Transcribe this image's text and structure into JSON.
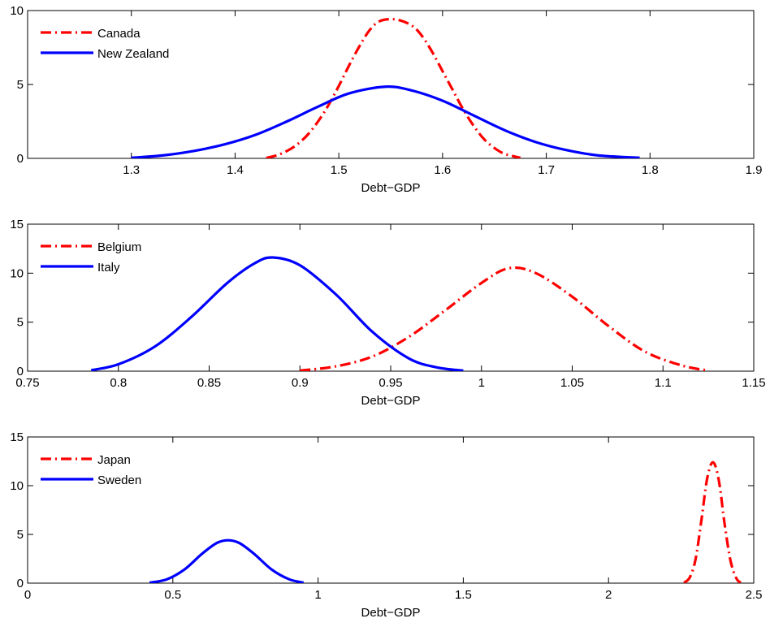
{
  "chart_data": [
    {
      "type": "line",
      "xlabel": "Debt−GDP",
      "ylabel": "",
      "xlim": [
        1.2,
        1.9
      ],
      "ylim": [
        0,
        10
      ],
      "xticks": [
        "1.3",
        "1.4",
        "1.5",
        "1.6",
        "1.7",
        "1.8",
        "1.9"
      ],
      "yticks": [
        "0",
        "5",
        "10"
      ],
      "legend_position": "top-left",
      "grid": false,
      "series": [
        {
          "name": "Canada",
          "style": "dash-dot",
          "color": "#ff0000",
          "x": [
            1.43,
            1.44,
            1.45,
            1.46,
            1.47,
            1.48,
            1.49,
            1.5,
            1.51,
            1.52,
            1.53,
            1.54,
            1.555,
            1.57,
            1.58,
            1.59,
            1.6,
            1.61,
            1.62,
            1.63,
            1.64,
            1.65,
            1.66,
            1.675
          ],
          "y": [
            0.03,
            0.2,
            0.5,
            0.95,
            1.6,
            2.5,
            3.6,
            4.9,
            6.3,
            7.6,
            8.7,
            9.3,
            9.4,
            9.0,
            8.3,
            7.2,
            5.9,
            4.6,
            3.3,
            2.2,
            1.3,
            0.7,
            0.3,
            0.04
          ]
        },
        {
          "name": "New Zealand",
          "style": "solid",
          "color": "#0000ff",
          "x": [
            1.3,
            1.33,
            1.36,
            1.39,
            1.42,
            1.45,
            1.48,
            1.51,
            1.545,
            1.57,
            1.6,
            1.63,
            1.66,
            1.69,
            1.72,
            1.75,
            1.79
          ],
          "y": [
            0.04,
            0.2,
            0.5,
            0.95,
            1.6,
            2.5,
            3.5,
            4.4,
            4.85,
            4.6,
            3.9,
            2.9,
            1.9,
            1.1,
            0.55,
            0.2,
            0.04
          ]
        }
      ]
    },
    {
      "type": "line",
      "xlabel": "Debt−GDP",
      "ylabel": "",
      "xlim": [
        0.75,
        1.15
      ],
      "ylim": [
        0,
        15
      ],
      "xticks": [
        "0.75",
        "0.8",
        "0.85",
        "0.9",
        "0.95",
        "1",
        "1.05",
        "1.1",
        "1.15"
      ],
      "yticks": [
        "0",
        "5",
        "10",
        "15"
      ],
      "legend_position": "top-left",
      "grid": false,
      "series": [
        {
          "name": "Belgium",
          "style": "dash-dot",
          "color": "#ff0000",
          "x": [
            0.9,
            0.92,
            0.94,
            0.96,
            0.98,
            1.0,
            1.015,
            1.03,
            1.05,
            1.07,
            1.09,
            1.11,
            1.125
          ],
          "y": [
            0.05,
            0.5,
            1.5,
            3.5,
            6.2,
            9.0,
            10.5,
            10.0,
            7.6,
            4.6,
            2.0,
            0.6,
            0.05
          ]
        },
        {
          "name": "Italy",
          "style": "solid",
          "color": "#0000ff",
          "x": [
            0.785,
            0.8,
            0.82,
            0.84,
            0.86,
            0.875,
            0.885,
            0.9,
            0.92,
            0.94,
            0.96,
            0.975,
            0.99
          ],
          "y": [
            0.1,
            0.7,
            2.5,
            5.5,
            9.0,
            11.0,
            11.6,
            10.8,
            7.8,
            4.0,
            1.3,
            0.4,
            0.05
          ]
        }
      ]
    },
    {
      "type": "line",
      "xlabel": "Debt−GDP",
      "ylabel": "",
      "xlim": [
        0,
        2.5
      ],
      "ylim": [
        0,
        15
      ],
      "xticks": [
        "0",
        "0.5",
        "1",
        "1.5",
        "2",
        "2.5"
      ],
      "yticks": [
        "0",
        "5",
        "10",
        "15"
      ],
      "legend_position": "top-left",
      "grid": false,
      "series": [
        {
          "name": "Japan",
          "style": "dash-dot",
          "color": "#ff0000",
          "x": [
            2.26,
            2.28,
            2.3,
            2.32,
            2.34,
            2.36,
            2.38,
            2.4,
            2.42,
            2.44,
            2.455
          ],
          "y": [
            0.05,
            0.6,
            2.5,
            6.5,
            10.8,
            12.4,
            10.5,
            6.0,
            2.3,
            0.5,
            0.05
          ]
        },
        {
          "name": "Sweden",
          "style": "solid",
          "color": "#0000ff",
          "x": [
            0.42,
            0.48,
            0.54,
            0.6,
            0.65,
            0.69,
            0.73,
            0.78,
            0.84,
            0.9,
            0.95
          ],
          "y": [
            0.05,
            0.4,
            1.4,
            3.0,
            4.1,
            4.4,
            4.1,
            3.0,
            1.4,
            0.4,
            0.05
          ]
        }
      ]
    }
  ]
}
